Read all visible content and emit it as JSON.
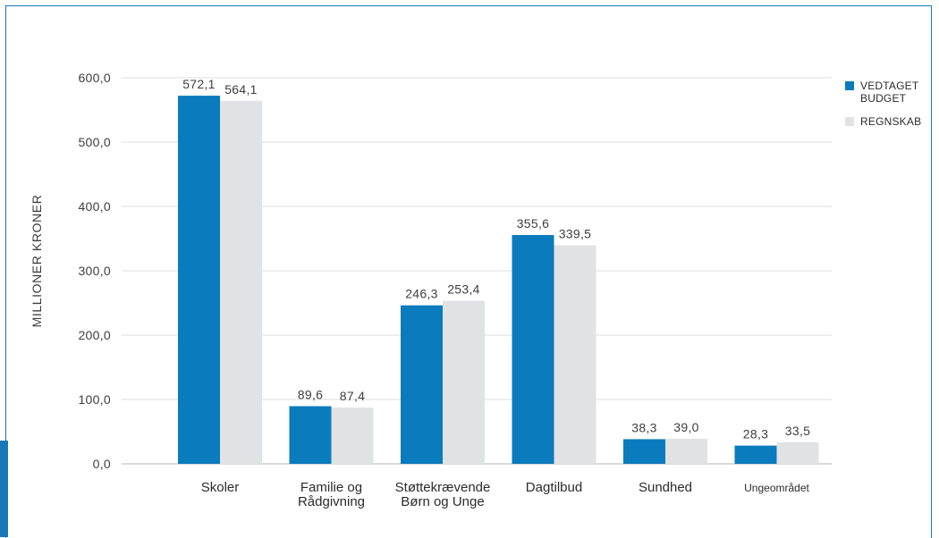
{
  "chart_data": {
    "type": "bar",
    "ylabel": "MILLIONER KRONER",
    "xlabel": "",
    "ylim": [
      0,
      600
    ],
    "y_ticks": [
      0,
      100,
      200,
      300,
      400,
      500,
      600
    ],
    "y_tick_labels": [
      "0,0",
      "100,0",
      "200,0",
      "300,0",
      "400,0",
      "500,0",
      "600,0"
    ],
    "grid": true,
    "legend_position": "right",
    "categories": [
      [
        "Skoler"
      ],
      [
        "Familie og",
        "Rådgivning"
      ],
      [
        "Støttekrævende",
        "Børn og Unge"
      ],
      [
        "Dagtilbud"
      ],
      [
        "Sundhed"
      ],
      [
        "Ungeområdet"
      ]
    ],
    "series": [
      {
        "name": "VEDTAGET BUDGET",
        "color": "#0a7bbd",
        "values": [
          572.1,
          89.6,
          246.3,
          355.6,
          38.3,
          28.3
        ],
        "labels": [
          "572,1",
          "89,6",
          "246,3",
          "355,6",
          "38,3",
          "28,3"
        ]
      },
      {
        "name": "REGNSKAB",
        "color": "#e1e2e3",
        "values": [
          564.1,
          87.4,
          253.4,
          339.5,
          39.0,
          33.5
        ],
        "labels": [
          "564,1",
          "87,4",
          "253,4",
          "339,5",
          "39,0",
          "33,5"
        ]
      }
    ]
  }
}
